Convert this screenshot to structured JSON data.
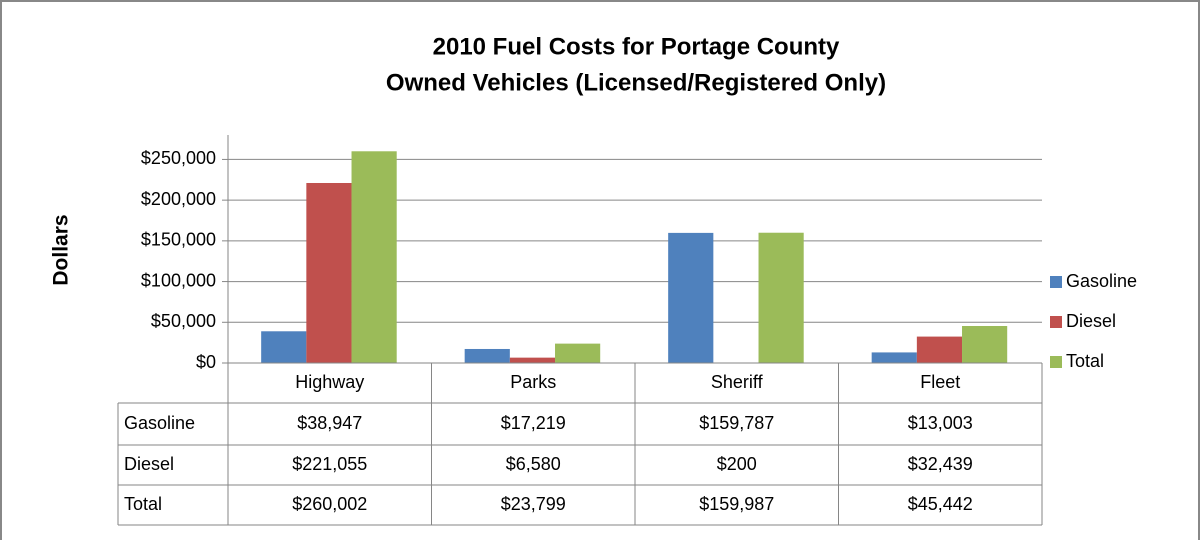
{
  "chart_data": {
    "type": "bar",
    "title": "2010 Fuel Costs for Portage County",
    "subtitle": "Owned Vehicles (Licensed/Registered Only)",
    "y_label": "Dollars",
    "categories": [
      "Highway",
      "Parks",
      "Sheriff",
      "Fleet"
    ],
    "series": [
      {
        "name": "Gasoline",
        "color": "#4f81bd",
        "values": [
          38947,
          17219,
          159787,
          13003
        ],
        "value_labels": [
          "$38,947",
          "$17,219",
          "$159,787",
          "$13,003"
        ]
      },
      {
        "name": "Diesel",
        "color": "#c0504d",
        "values": [
          221055,
          6580,
          200,
          32439
        ],
        "value_labels": [
          "$221,055",
          "$6,580",
          "$200",
          "$32,439"
        ]
      },
      {
        "name": "Total",
        "color": "#9bbb59",
        "values": [
          260002,
          23799,
          159987,
          45442
        ],
        "value_labels": [
          "$260,002",
          "$23,799",
          "$159,987",
          "$45,442"
        ]
      }
    ],
    "ylim": [
      0,
      280000
    ],
    "yticks": [
      {
        "value": 0,
        "label": "$0"
      },
      {
        "value": 50000,
        "label": "$50,000"
      },
      {
        "value": 100000,
        "label": "$100,000"
      },
      {
        "value": 150000,
        "label": "$150,000"
      },
      {
        "value": 200000,
        "label": "$200,000"
      },
      {
        "value": 250000,
        "label": "$250,000"
      }
    ],
    "grid": true,
    "legend": "right"
  }
}
